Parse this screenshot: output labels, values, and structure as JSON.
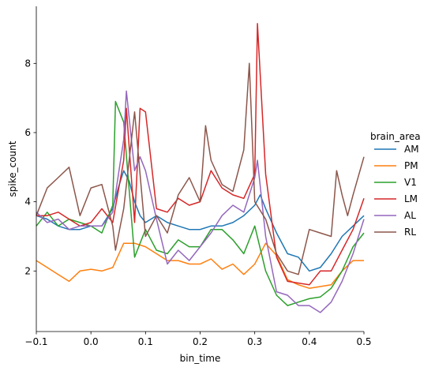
{
  "chart_data": {
    "type": "line",
    "xlabel": "bin_time",
    "ylabel": "spike_count",
    "xlim": [
      -0.1,
      0.5
    ],
    "ylim": [
      0.25,
      9.65
    ],
    "xticks": [
      -0.1,
      0.0,
      0.1,
      0.2,
      0.3,
      0.4,
      0.5
    ],
    "xtick_labels": [
      "−0.1",
      "0.0",
      "0.1",
      "0.2",
      "0.3",
      "0.4",
      "0.5"
    ],
    "yticks": [
      2,
      4,
      6,
      8
    ],
    "ytick_labels": [
      "2",
      "4",
      "6",
      "8"
    ],
    "grid": false,
    "legend_title": "brain_area",
    "legend_position": "right",
    "series": [
      {
        "name": "AM",
        "color": "#1f77b4",
        "points": [
          [
            -0.1,
            3.6
          ],
          [
            -0.08,
            3.5
          ],
          [
            -0.06,
            3.3
          ],
          [
            -0.04,
            3.2
          ],
          [
            -0.02,
            3.2
          ],
          [
            0.0,
            3.3
          ],
          [
            0.02,
            3.3
          ],
          [
            0.04,
            3.8
          ],
          [
            0.05,
            4.4
          ],
          [
            0.06,
            4.9
          ],
          [
            0.07,
            4.6
          ],
          [
            0.08,
            4.0
          ],
          [
            0.09,
            3.6
          ],
          [
            0.1,
            3.4
          ],
          [
            0.12,
            3.6
          ],
          [
            0.14,
            3.4
          ],
          [
            0.16,
            3.3
          ],
          [
            0.18,
            3.2
          ],
          [
            0.2,
            3.2
          ],
          [
            0.22,
            3.3
          ],
          [
            0.24,
            3.3
          ],
          [
            0.26,
            3.4
          ],
          [
            0.28,
            3.6
          ],
          [
            0.3,
            3.9
          ],
          [
            0.31,
            4.2
          ],
          [
            0.32,
            3.8
          ],
          [
            0.34,
            3.1
          ],
          [
            0.36,
            2.5
          ],
          [
            0.38,
            2.4
          ],
          [
            0.4,
            2.0
          ],
          [
            0.42,
            2.1
          ],
          [
            0.44,
            2.5
          ],
          [
            0.46,
            3.0
          ],
          [
            0.48,
            3.3
          ],
          [
            0.5,
            3.6
          ]
        ]
      },
      {
        "name": "PM",
        "color": "#ff7f0e",
        "points": [
          [
            -0.1,
            2.3
          ],
          [
            -0.08,
            2.1
          ],
          [
            -0.06,
            1.9
          ],
          [
            -0.04,
            1.7
          ],
          [
            -0.02,
            2.0
          ],
          [
            0.0,
            2.05
          ],
          [
            0.02,
            2.0
          ],
          [
            0.04,
            2.1
          ],
          [
            0.06,
            2.8
          ],
          [
            0.08,
            2.8
          ],
          [
            0.1,
            2.7
          ],
          [
            0.12,
            2.5
          ],
          [
            0.14,
            2.3
          ],
          [
            0.16,
            2.3
          ],
          [
            0.18,
            2.2
          ],
          [
            0.2,
            2.2
          ],
          [
            0.22,
            2.35
          ],
          [
            0.24,
            2.05
          ],
          [
            0.26,
            2.2
          ],
          [
            0.28,
            1.9
          ],
          [
            0.3,
            2.2
          ],
          [
            0.32,
            2.8
          ],
          [
            0.34,
            2.45
          ],
          [
            0.36,
            1.75
          ],
          [
            0.38,
            1.6
          ],
          [
            0.4,
            1.5
          ],
          [
            0.42,
            1.55
          ],
          [
            0.44,
            1.6
          ],
          [
            0.46,
            2.0
          ],
          [
            0.48,
            2.3
          ],
          [
            0.5,
            2.3
          ]
        ]
      },
      {
        "name": "V1",
        "color": "#2ca02c",
        "points": [
          [
            -0.1,
            3.3
          ],
          [
            -0.08,
            3.7
          ],
          [
            -0.06,
            3.3
          ],
          [
            -0.04,
            3.5
          ],
          [
            -0.02,
            3.4
          ],
          [
            0.0,
            3.3
          ],
          [
            0.02,
            3.1
          ],
          [
            0.04,
            3.9
          ],
          [
            0.045,
            6.9
          ],
          [
            0.06,
            6.3
          ],
          [
            0.08,
            2.4
          ],
          [
            0.1,
            3.2
          ],
          [
            0.12,
            2.6
          ],
          [
            0.14,
            2.5
          ],
          [
            0.16,
            2.9
          ],
          [
            0.18,
            2.7
          ],
          [
            0.2,
            2.7
          ],
          [
            0.22,
            3.2
          ],
          [
            0.24,
            3.2
          ],
          [
            0.26,
            2.9
          ],
          [
            0.28,
            2.5
          ],
          [
            0.3,
            3.3
          ],
          [
            0.32,
            2.0
          ],
          [
            0.34,
            1.3
          ],
          [
            0.36,
            1.0
          ],
          [
            0.38,
            1.1
          ],
          [
            0.4,
            1.2
          ],
          [
            0.42,
            1.25
          ],
          [
            0.44,
            1.5
          ],
          [
            0.46,
            2.0
          ],
          [
            0.48,
            2.7
          ],
          [
            0.5,
            3.1
          ]
        ]
      },
      {
        "name": "LM",
        "color": "#d62728",
        "points": [
          [
            -0.1,
            3.6
          ],
          [
            -0.08,
            3.6
          ],
          [
            -0.06,
            3.7
          ],
          [
            -0.04,
            3.5
          ],
          [
            -0.02,
            3.3
          ],
          [
            0.0,
            3.4
          ],
          [
            0.02,
            3.8
          ],
          [
            0.04,
            3.4
          ],
          [
            0.06,
            5.2
          ],
          [
            0.065,
            6.7
          ],
          [
            0.08,
            3.4
          ],
          [
            0.09,
            6.7
          ],
          [
            0.1,
            6.6
          ],
          [
            0.12,
            3.8
          ],
          [
            0.14,
            3.7
          ],
          [
            0.16,
            4.1
          ],
          [
            0.18,
            3.9
          ],
          [
            0.2,
            4.0
          ],
          [
            0.22,
            4.9
          ],
          [
            0.24,
            4.4
          ],
          [
            0.26,
            4.2
          ],
          [
            0.28,
            4.1
          ],
          [
            0.3,
            4.8
          ],
          [
            0.305,
            9.15
          ],
          [
            0.32,
            4.8
          ],
          [
            0.34,
            2.4
          ],
          [
            0.36,
            1.7
          ],
          [
            0.38,
            1.65
          ],
          [
            0.4,
            1.6
          ],
          [
            0.42,
            2.0
          ],
          [
            0.44,
            2.0
          ],
          [
            0.46,
            2.6
          ],
          [
            0.48,
            3.2
          ],
          [
            0.5,
            4.1
          ]
        ]
      },
      {
        "name": "AL",
        "color": "#9467bd",
        "points": [
          [
            -0.1,
            3.7
          ],
          [
            -0.08,
            3.4
          ],
          [
            -0.06,
            3.5
          ],
          [
            -0.04,
            3.2
          ],
          [
            -0.02,
            3.3
          ],
          [
            0.0,
            3.3
          ],
          [
            0.02,
            3.3
          ],
          [
            0.04,
            3.7
          ],
          [
            0.06,
            5.8
          ],
          [
            0.065,
            7.2
          ],
          [
            0.08,
            4.9
          ],
          [
            0.09,
            5.3
          ],
          [
            0.1,
            4.9
          ],
          [
            0.12,
            3.5
          ],
          [
            0.14,
            2.2
          ],
          [
            0.16,
            2.6
          ],
          [
            0.18,
            2.3
          ],
          [
            0.2,
            2.7
          ],
          [
            0.22,
            3.1
          ],
          [
            0.24,
            3.6
          ],
          [
            0.26,
            3.9
          ],
          [
            0.28,
            3.7
          ],
          [
            0.3,
            4.7
          ],
          [
            0.305,
            5.2
          ],
          [
            0.32,
            3.0
          ],
          [
            0.34,
            1.4
          ],
          [
            0.36,
            1.3
          ],
          [
            0.38,
            1.0
          ],
          [
            0.4,
            1.0
          ],
          [
            0.42,
            0.8
          ],
          [
            0.44,
            1.1
          ],
          [
            0.46,
            1.7
          ],
          [
            0.48,
            2.5
          ],
          [
            0.5,
            3.5
          ]
        ]
      },
      {
        "name": "RL",
        "color": "#8c564b",
        "points": [
          [
            -0.1,
            3.6
          ],
          [
            -0.08,
            4.4
          ],
          [
            -0.06,
            4.7
          ],
          [
            -0.04,
            5.0
          ],
          [
            -0.02,
            3.6
          ],
          [
            0.0,
            4.4
          ],
          [
            0.02,
            4.5
          ],
          [
            0.04,
            3.3
          ],
          [
            0.045,
            2.6
          ],
          [
            0.06,
            3.8
          ],
          [
            0.08,
            6.6
          ],
          [
            0.1,
            3.0
          ],
          [
            0.12,
            3.6
          ],
          [
            0.14,
            3.1
          ],
          [
            0.16,
            4.2
          ],
          [
            0.18,
            4.7
          ],
          [
            0.2,
            4.0
          ],
          [
            0.21,
            6.2
          ],
          [
            0.22,
            5.2
          ],
          [
            0.24,
            4.5
          ],
          [
            0.26,
            4.3
          ],
          [
            0.28,
            5.5
          ],
          [
            0.29,
            8.0
          ],
          [
            0.3,
            4.0
          ],
          [
            0.32,
            3.5
          ],
          [
            0.34,
            2.5
          ],
          [
            0.36,
            2.0
          ],
          [
            0.38,
            1.9
          ],
          [
            0.4,
            3.2
          ],
          [
            0.42,
            3.1
          ],
          [
            0.44,
            3.0
          ],
          [
            0.45,
            4.9
          ],
          [
            0.46,
            4.2
          ],
          [
            0.47,
            3.6
          ],
          [
            0.48,
            4.2
          ],
          [
            0.5,
            5.3
          ]
        ]
      }
    ]
  }
}
